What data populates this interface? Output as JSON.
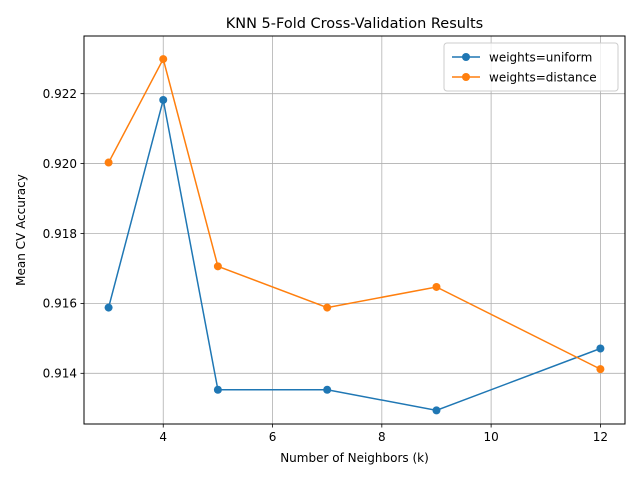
{
  "chart_data": {
    "type": "line",
    "title": "KNN 5-Fold Cross-Validation Results",
    "xlabel": "Number of Neighbors (k)",
    "ylabel": "Mean CV Accuracy",
    "xlim": [
      2.55,
      12.45
    ],
    "ylim": [
      0.91255,
      0.92365
    ],
    "xticks": [
      4,
      6,
      8,
      10,
      12
    ],
    "xtick_labels": [
      "4",
      "6",
      "8",
      "10",
      "12"
    ],
    "yticks": [
      0.914,
      0.916,
      0.918,
      0.92,
      0.922
    ],
    "ytick_labels": [
      "0.914",
      "0.916",
      "0.918",
      "0.920",
      "0.922"
    ],
    "grid": true,
    "legend_position": "top-right",
    "x": [
      3,
      4,
      5,
      7,
      9,
      12
    ],
    "series": [
      {
        "name": "weights=uniform",
        "color": "#1f77b4",
        "marker": "circle",
        "values": [
          0.91588,
          0.92182,
          0.91353,
          0.91353,
          0.91294,
          0.91471
        ]
      },
      {
        "name": "weights=distance",
        "color": "#ff7f0e",
        "marker": "circle",
        "values": [
          0.92003,
          0.92299,
          0.91706,
          0.91588,
          0.91647,
          0.91412
        ]
      }
    ]
  }
}
